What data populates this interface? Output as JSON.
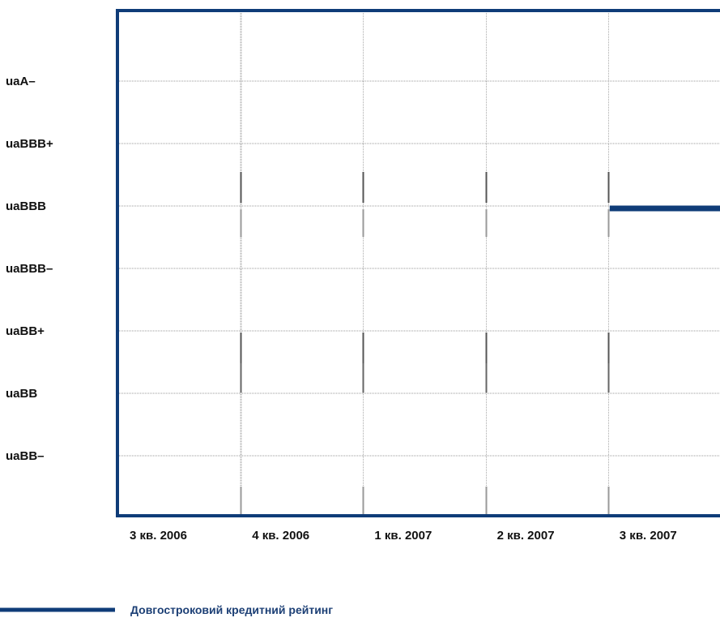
{
  "chart_data": {
    "type": "line",
    "title": "",
    "xlabel": "",
    "ylabel": "",
    "x_categories": [
      "3 кв. 2006",
      "4 кв. 2006",
      "1 кв. 2007",
      "2 кв. 2007",
      "3 кв. 2007"
    ],
    "y_categories": [
      "uaBB–",
      "uaBB",
      "uaBB+",
      "uaBBB–",
      "uaBBB",
      "uaBBB+",
      "uaA–"
    ],
    "series": [
      {
        "name": "Довгостроковий кредитний рейтинг",
        "color": "#0f3c78",
        "points": [
          {
            "x": "3 кв. 2007",
            "y": "uaBBB"
          }
        ]
      }
    ],
    "grid": true,
    "legend_position": "bottom-left"
  }
}
